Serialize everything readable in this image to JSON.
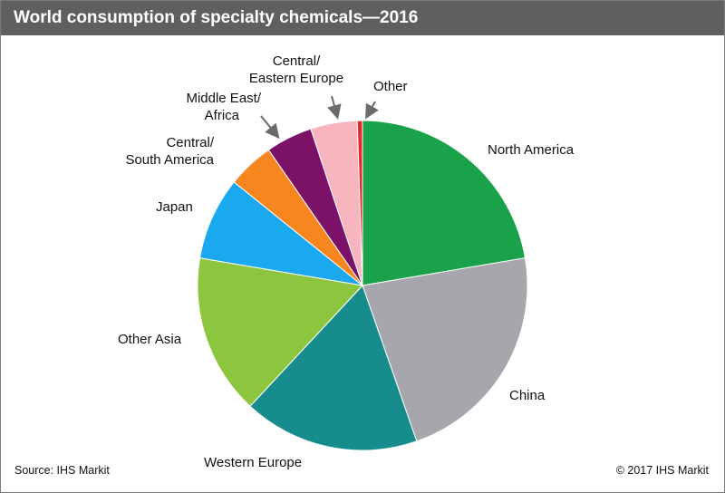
{
  "title": "World consumption of specialty chemicals—2016",
  "footer": {
    "source": "Source:  IHS Markit",
    "copyright": "© 2017  IHS Markit"
  },
  "chart_data": {
    "type": "pie",
    "title": "World consumption of specialty chemicals—2016",
    "start": "12 o'clock, clockwise",
    "slices": [
      {
        "label": "North America",
        "value": 22.0,
        "color": "#1aa24a"
      },
      {
        "label": "China",
        "value": 22.0,
        "color": "#a6a6ac"
      },
      {
        "label": "Western Europe",
        "value": 17.0,
        "color": "#178c8c"
      },
      {
        "label": "Other Asia",
        "value": 15.5,
        "color": "#8cc63f"
      },
      {
        "label": "Japan",
        "value": 8.0,
        "color": "#1aa9ef"
      },
      {
        "label": "Central/South America",
        "value": 4.5,
        "color": "#f7861f"
      },
      {
        "label": "Middle East/ Africa",
        "value": 4.5,
        "color": "#7b1268"
      },
      {
        "label": "Central/ Eastern Europe",
        "value": 4.5,
        "color": "#f7b6bd"
      },
      {
        "label": "Other",
        "value": 0.5,
        "color": "#e8252b"
      }
    ]
  }
}
